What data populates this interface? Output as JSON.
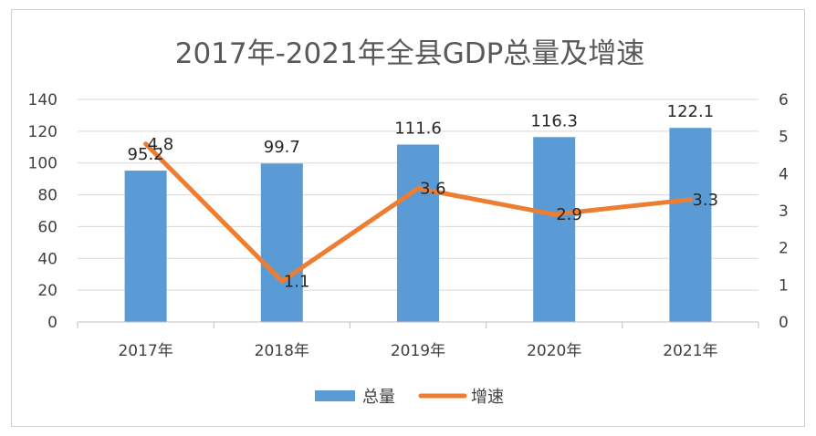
{
  "chart_data": {
    "type": "bar",
    "title": "2017年-2021年全县GDP总量及增速",
    "categories": [
      "2017年",
      "2018年",
      "2019年",
      "2020年",
      "2021年"
    ],
    "series": [
      {
        "name": "总量",
        "type": "bar",
        "axis": "left",
        "values": [
          95.2,
          99.7,
          111.6,
          116.3,
          122.1
        ],
        "labels": [
          "95.2",
          "99.7",
          "111.6",
          "116.3",
          "122.1"
        ],
        "color": "#5B9BD5"
      },
      {
        "name": "增速",
        "type": "line",
        "axis": "right",
        "values": [
          4.8,
          1.1,
          3.6,
          2.9,
          3.3
        ],
        "labels": [
          "4.8",
          "1.1",
          "3.6",
          "2.9",
          "3.3"
        ],
        "color": "#ED7D31"
      }
    ],
    "y_left": {
      "range": [
        0,
        140
      ],
      "ticks": [
        "0",
        "20",
        "40",
        "60",
        "80",
        "100",
        "120",
        "140"
      ]
    },
    "y_right": {
      "range": [
        0,
        6
      ],
      "ticks": [
        "0",
        "1",
        "2",
        "3",
        "4",
        "5",
        "6"
      ]
    },
    "grid": true,
    "legend": "bottom"
  }
}
